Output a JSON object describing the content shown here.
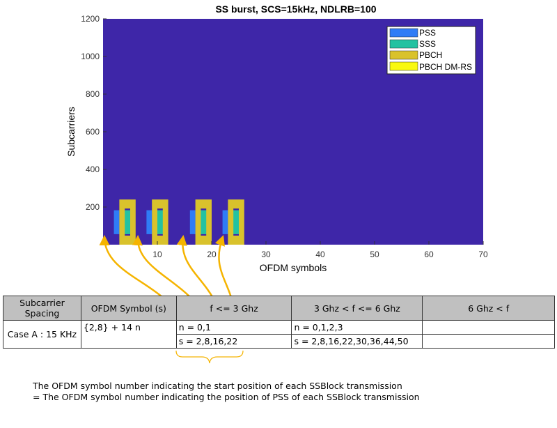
{
  "chart_data": {
    "type": "heatmap",
    "title": "SS burst, SCS=15kHz, NDLRB=100",
    "xlabel": "OFDM symbols",
    "ylabel": "Subcarriers",
    "xlim": [
      0,
      70
    ],
    "ylim": [
      0,
      1200
    ],
    "xticks": [
      10,
      20,
      30,
      40,
      50,
      60,
      70
    ],
    "yticks": [
      200,
      400,
      600,
      800,
      1000,
      1200
    ],
    "background_color": "#3e26a8",
    "legend_position": "top-right",
    "series": [
      {
        "name": "PSS",
        "color": "#2f7cf6"
      },
      {
        "name": "SSS",
        "color": "#23c2a1"
      },
      {
        "name": "PBCH",
        "color": "#d9c22c"
      },
      {
        "name": "PBCH DM-RS",
        "color": "#f9f90f"
      }
    ],
    "ss_blocks": [
      {
        "pss_symbol": 2
      },
      {
        "pss_symbol": 8
      },
      {
        "pss_symbol": 16
      },
      {
        "pss_symbol": 22
      }
    ],
    "block_geometry": {
      "pss": {
        "symbol_offset": 0,
        "symbols": 1,
        "subcarriers": [
          56,
          183
        ]
      },
      "pbch_frame": {
        "symbol_offset": 1,
        "symbols": 3,
        "subcarriers": [
          0,
          240
        ]
      },
      "sss": {
        "symbol_offset": 2,
        "symbols": 1,
        "subcarriers": [
          56,
          183
        ]
      },
      "gap_subcarriers": [
        [
          48,
          56
        ],
        [
          183,
          192
        ]
      ]
    }
  },
  "table": {
    "headers": [
      "Subcarrier Spacing",
      "OFDM Symbol (s)",
      "f <= 3 Ghz",
      "3 Ghz < f <= 6 Ghz",
      "6 Ghz < f"
    ],
    "case": "Case A : 15 KHz",
    "symbol_formula": "{2,8} + 14 n",
    "n_low": "n = 0,1",
    "s_low": "s = 2,8,16,22",
    "n_mid": "n = 0,1,2,3",
    "s_mid": "s = 2,8,16,22,30,36,44,50",
    "n_high": "",
    "s_high": ""
  },
  "annotation": {
    "color": "#f5b400",
    "line1": "The OFDM symbol number indicating the start position of each SSBlock transmission",
    "line2": "= The OFDM symbol number indicating the position of PSS of each SSBlock transmission"
  }
}
